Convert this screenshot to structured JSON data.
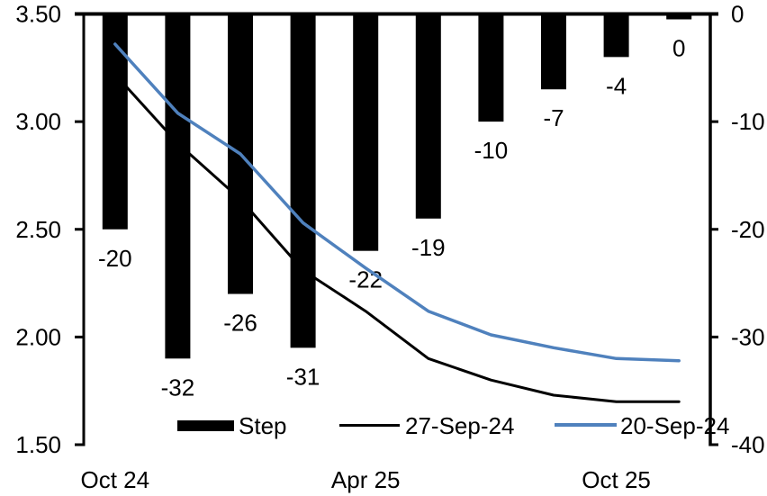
{
  "chart": {
    "background": "#ffffff",
    "text_color": "#000000"
  },
  "chart_data": {
    "type": "combo-bar-line",
    "title": "",
    "grid": false,
    "legend_position": "bottom",
    "x_tick_labels": [
      {
        "slot": 0,
        "label": "Oct 24"
      },
      {
        "slot": 4,
        "label": "Apr 25"
      },
      {
        "slot": 8,
        "label": "Oct 25"
      }
    ],
    "left_axis": {
      "min": 1.5,
      "max": 3.5,
      "tick_values": [
        3.5,
        3.0,
        2.5,
        2.0,
        1.5
      ],
      "tick_labels": [
        "3.50",
        "3.00",
        "2.50",
        "2.00",
        "1.50"
      ]
    },
    "right_axis": {
      "min": -40,
      "max": 0,
      "tick_values": [
        0,
        -10,
        -20,
        -30,
        -40
      ],
      "tick_labels": [
        "0",
        "-10",
        "-20",
        "-30",
        "-40"
      ]
    },
    "bar_series": {
      "name": "Step",
      "axis": "right",
      "color": "#000000",
      "values": [
        -20,
        -32,
        -26,
        -31,
        -22,
        -19,
        -10,
        -7,
        -4,
        0
      ],
      "data_labels": [
        "-20",
        "-32",
        "-26",
        "-31",
        "-22",
        "-19",
        "-10",
        "-7",
        "-4",
        "0"
      ]
    },
    "line_series": [
      {
        "name": "27-Sep-24",
        "axis": "left",
        "color": "#000000",
        "stroke_width": 3,
        "values": [
          3.22,
          2.9,
          2.64,
          2.31,
          2.12,
          1.9,
          1.8,
          1.73,
          1.7,
          1.7
        ]
      },
      {
        "name": "20-Sep-24",
        "axis": "left",
        "color": "#4f81bd",
        "stroke_width": 3.5,
        "values": [
          3.36,
          3.04,
          2.85,
          2.53,
          2.32,
          2.12,
          2.01,
          1.95,
          1.9,
          1.89
        ]
      }
    ]
  }
}
